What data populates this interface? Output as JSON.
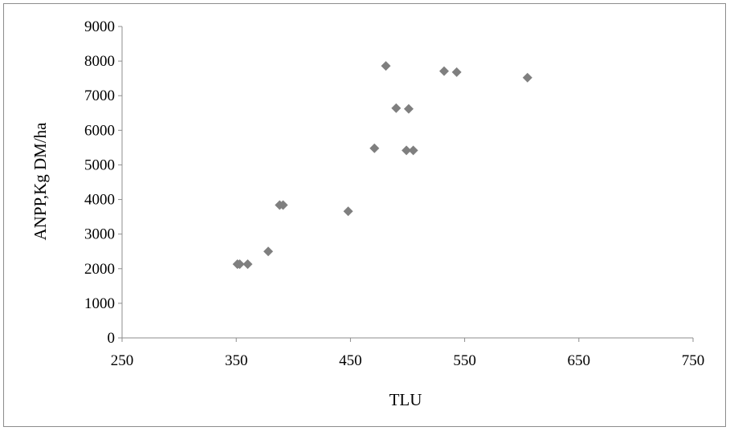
{
  "chart_data": {
    "type": "scatter",
    "title": "",
    "xlabel": "TLU",
    "ylabel": "ANPP,Kg DM/ha",
    "xlim": [
      250,
      750
    ],
    "ylim": [
      0,
      9000
    ],
    "x_ticks": [
      250,
      350,
      450,
      550,
      650,
      750
    ],
    "y_ticks": [
      0,
      1000,
      2000,
      3000,
      4000,
      5000,
      6000,
      7000,
      8000,
      9000
    ],
    "grid": false,
    "legend": "none",
    "marker": "diamond",
    "marker_color": "#7f7f7f",
    "series": [
      {
        "x": [
          351,
          353,
          360,
          378,
          388,
          391,
          448,
          471,
          481,
          490,
          499,
          501,
          505,
          532,
          543,
          605
        ],
        "y": [
          2130,
          2130,
          2130,
          2500,
          3840,
          3840,
          3660,
          5480,
          7860,
          6640,
          5420,
          6620,
          5420,
          7710,
          7680,
          7520
        ]
      }
    ]
  }
}
